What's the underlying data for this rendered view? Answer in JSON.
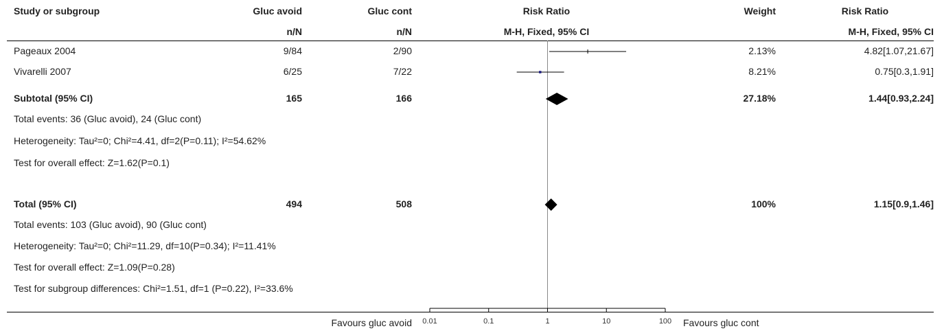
{
  "header": {
    "study_label": "Study or subgroup",
    "group1_label": "Gluc avoid",
    "group1_sub": "n/N",
    "group2_label": "Gluc cont",
    "group2_sub": "n/N",
    "plot_label": "Risk Ratio",
    "plot_sub": "M-H, Fixed, 95% CI",
    "weight_label": "Weight",
    "ratio_label": "Risk Ratio",
    "ratio_sub": "M-H, Fixed, 95% CI"
  },
  "rows": [
    {
      "kind": "study",
      "name": "Pageaux 2004",
      "g1": "9/84",
      "g2": "2/90",
      "weight": "2.13%",
      "ci_text": "4.82[1.07,21.67]"
    },
    {
      "kind": "study",
      "name": "Vivarelli 2007",
      "g1": "6/25",
      "g2": "7/22",
      "weight": "8.21%",
      "ci_text": "0.75[0.3,1.91]"
    },
    {
      "kind": "subtotal",
      "name": "Subtotal (95% CI)",
      "g1": "165",
      "g2": "166",
      "weight": "27.18%",
      "ci_text": "1.44[0.93,2.24]"
    },
    {
      "kind": "note",
      "text": "Total events: 36 (Gluc avoid), 24 (Gluc cont)"
    },
    {
      "kind": "note",
      "text": "Heterogeneity: Tau²=0; Chi²=4.41, df=2(P=0.11); I²=54.62%"
    },
    {
      "kind": "note",
      "text": "Test for overall effect: Z=1.62(P=0.1)"
    },
    {
      "kind": "total",
      "name": "Total (95% CI)",
      "g1": "494",
      "g2": "508",
      "weight": "100%",
      "ci_text": "1.15[0.9,1.46]"
    },
    {
      "kind": "note",
      "text": "Total events: 103 (Gluc avoid), 90 (Gluc cont)"
    },
    {
      "kind": "note",
      "text": "Heterogeneity: Tau²=0; Chi²=11.29, df=10(P=0.34); I²=11.41%"
    },
    {
      "kind": "note",
      "text": "Test for overall effect: Z=1.09(P=0.28)"
    },
    {
      "kind": "note",
      "text": "Test for subgroup differences: Chi²=1.51, df=1 (P=0.22), I²=33.6%"
    }
  ],
  "footer": {
    "favours_left": "Favours gluc avoid",
    "favours_right": "Favours gluc cont"
  },
  "chart_data": {
    "type": "forest",
    "scale": "log",
    "xlim": [
      0.01,
      100
    ],
    "null_value": 1,
    "ticks": [
      0.01,
      0.1,
      1,
      10,
      100
    ],
    "tick_labels": [
      "0.01",
      "0.1",
      "1",
      "10",
      "100"
    ],
    "estimates": [
      {
        "label": "Pageaux 2004",
        "kind": "study",
        "rr": 4.82,
        "lo": 1.07,
        "hi": 21.67,
        "weight": 2.13
      },
      {
        "label": "Vivarelli 2007",
        "kind": "study",
        "rr": 0.75,
        "lo": 0.3,
        "hi": 1.91,
        "weight": 8.21
      },
      {
        "label": "Subtotal (95% CI)",
        "kind": "subtotal",
        "rr": 1.44,
        "lo": 0.93,
        "hi": 2.24,
        "weight": 27.18
      },
      {
        "label": "Total (95% CI)",
        "kind": "total",
        "rr": 1.15,
        "lo": 0.9,
        "hi": 1.46,
        "weight": 100
      }
    ],
    "colors": {
      "study_box": "#1a1a80",
      "line": "#000000",
      "diamond": "#000000",
      "null_line": "#888888"
    }
  }
}
